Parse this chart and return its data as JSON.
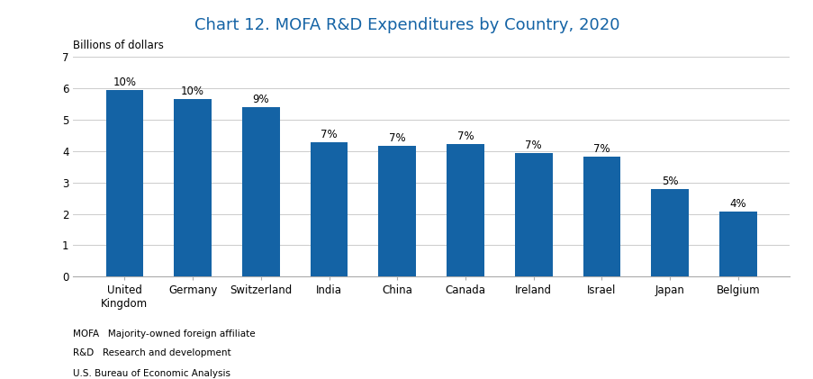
{
  "title": "Chart 12. MOFA R&D Expenditures by Country, 2020",
  "title_color": "#1463A5",
  "ylabel": "Billions of dollars",
  "categories": [
    "United\nKingdom",
    "Germany",
    "Switzerland",
    "India",
    "China",
    "Canada",
    "Ireland",
    "Israel",
    "Japan",
    "Belgium"
  ],
  "values": [
    5.95,
    5.65,
    5.4,
    4.28,
    4.18,
    4.22,
    3.95,
    3.82,
    2.8,
    2.07
  ],
  "percentages": [
    "10%",
    "10%",
    "9%",
    "7%",
    "7%",
    "7%",
    "7%",
    "7%",
    "5%",
    "4%"
  ],
  "bar_color": "#1463A5",
  "ylim": [
    0,
    7
  ],
  "yticks": [
    0,
    1,
    2,
    3,
    4,
    5,
    6,
    7
  ],
  "footnote_line1": "MOFA   Majority-owned foreign affiliate",
  "footnote_line2": "R&D   Research and development",
  "footnote_line3": "U.S. Bureau of Economic Analysis",
  "background_color": "#ffffff",
  "grid_color": "#cccccc",
  "label_fontsize": 8.5,
  "tick_fontsize": 8.5,
  "title_fontsize": 13,
  "ylabel_fontsize": 8.5,
  "footnote_fontsize": 7.5
}
